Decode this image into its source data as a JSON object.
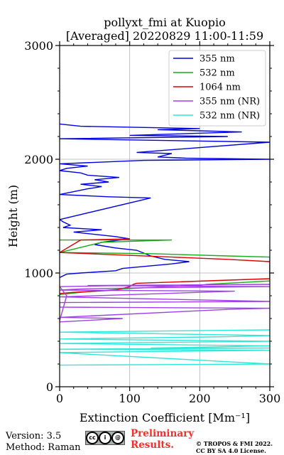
{
  "title_line1": "pollyxt_fmi at Kuopio",
  "title_line2": "[Averaged] 20220829 11:00-11:59",
  "footer": {
    "version": "Version: 3.5",
    "method": "Method: Raman",
    "prelim_line1": "Preliminary",
    "prelim_line2": "Results.",
    "copyright_line1": "© TROPOS & FMI 2022.",
    "copyright_line2": "CC BY SA 4.0 License."
  },
  "cc_badge_text": "cc by sa",
  "chart_data": {
    "type": "line",
    "title": "pollyxt_fmi at Kuopio [Averaged] 20220829 11:00-11:59",
    "xlabel": "Extinction Coefficient [Mm⁻¹]",
    "ylabel": "Height (m)",
    "xlim": [
      0,
      300
    ],
    "ylim": [
      0,
      3000
    ],
    "xticks": [
      0,
      100,
      200,
      300
    ],
    "yticks": [
      0,
      1000,
      2000,
      3000
    ],
    "grid": true,
    "legend_position": "top-right",
    "series": [
      {
        "name": "355 nm",
        "color": "#0000e0",
        "points": [
          [
            0,
            960
          ],
          [
            10,
            990
          ],
          [
            30,
            1000
          ],
          [
            80,
            1020
          ],
          [
            90,
            1040
          ],
          [
            160,
            1080
          ],
          [
            185,
            1100
          ],
          [
            150,
            1120
          ],
          [
            130,
            1150
          ],
          [
            110,
            1200
          ],
          [
            80,
            1220
          ],
          [
            50,
            1250
          ],
          [
            60,
            1270
          ],
          [
            100,
            1300
          ],
          [
            80,
            1320
          ],
          [
            20,
            1360
          ],
          [
            60,
            1380
          ],
          [
            5,
            1400
          ],
          [
            15,
            1420
          ],
          [
            5,
            1450
          ],
          [
            0,
            1470
          ],
          [
            130,
            1660
          ],
          [
            70,
            1670
          ],
          [
            0,
            1690
          ],
          [
            40,
            1740
          ],
          [
            60,
            1760
          ],
          [
            30,
            1780
          ],
          [
            70,
            1800
          ],
          [
            50,
            1820
          ],
          [
            85,
            1840
          ],
          [
            40,
            1860
          ],
          [
            30,
            1880
          ],
          [
            0,
            1900
          ],
          [
            10,
            1920
          ],
          [
            40,
            1940
          ],
          [
            0,
            1960
          ],
          [
            120,
            1990
          ],
          [
            300,
            2000
          ],
          [
            180,
            2010
          ],
          [
            140,
            2020
          ],
          [
            160,
            2050
          ],
          [
            110,
            2060
          ],
          [
            300,
            2150
          ],
          [
            0,
            2180
          ],
          [
            240,
            2200
          ],
          [
            100,
            2210
          ],
          [
            260,
            2240
          ],
          [
            140,
            2260
          ],
          [
            200,
            2270
          ],
          [
            30,
            2290
          ],
          [
            0,
            2310
          ]
        ]
      },
      {
        "name": "532 nm",
        "color": "#1aaa1a",
        "points": [
          [
            0,
            810
          ],
          [
            30,
            830
          ],
          [
            90,
            860
          ],
          [
            120,
            870
          ],
          [
            150,
            880
          ],
          [
            200,
            890
          ],
          [
            210,
            900
          ],
          [
            300,
            930
          ],
          [
            300,
            1140
          ],
          [
            240,
            1150
          ],
          [
            130,
            1170
          ],
          [
            0,
            1180
          ],
          [
            60,
            1270
          ],
          [
            160,
            1290
          ],
          [
            0,
            1290
          ]
        ]
      },
      {
        "name": "1064 nm",
        "color": "#dd0000",
        "points": [
          [
            0,
            820
          ],
          [
            20,
            830
          ],
          [
            80,
            850
          ],
          [
            100,
            880
          ],
          [
            105,
            900
          ],
          [
            110,
            910
          ],
          [
            160,
            920
          ],
          [
            300,
            950
          ],
          [
            300,
            1100
          ],
          [
            240,
            1120
          ],
          [
            160,
            1140
          ],
          [
            0,
            1180
          ],
          [
            30,
            1290
          ],
          [
            100,
            1300
          ]
        ]
      },
      {
        "name": "355 nm (NR)",
        "color": "#a040e8",
        "points": [
          [
            0,
            570
          ],
          [
            90,
            600
          ],
          [
            0,
            610
          ],
          [
            240,
            680
          ],
          [
            300,
            690
          ],
          [
            0,
            700
          ],
          [
            0,
            740
          ],
          [
            300,
            750
          ],
          [
            0,
            790
          ],
          [
            250,
            840
          ],
          [
            0,
            850
          ],
          [
            30,
            860
          ],
          [
            120,
            870
          ],
          [
            300,
            880
          ],
          [
            40,
            890
          ],
          [
            300,
            900
          ],
          [
            90,
            890
          ],
          [
            0,
            880
          ],
          [
            10,
            800
          ],
          [
            0,
            580
          ]
        ]
      },
      {
        "name": "532 nm (NR)",
        "color": "#30e8d8",
        "points": [
          [
            0,
            190
          ],
          [
            300,
            200
          ],
          [
            0,
            300
          ],
          [
            130,
            310
          ],
          [
            300,
            320
          ],
          [
            0,
            330
          ],
          [
            300,
            340
          ],
          [
            130,
            340
          ],
          [
            300,
            360
          ],
          [
            0,
            380
          ],
          [
            300,
            400
          ],
          [
            0,
            420
          ],
          [
            240,
            440
          ],
          [
            300,
            450
          ],
          [
            0,
            480
          ],
          [
            300,
            500
          ]
        ]
      }
    ]
  }
}
